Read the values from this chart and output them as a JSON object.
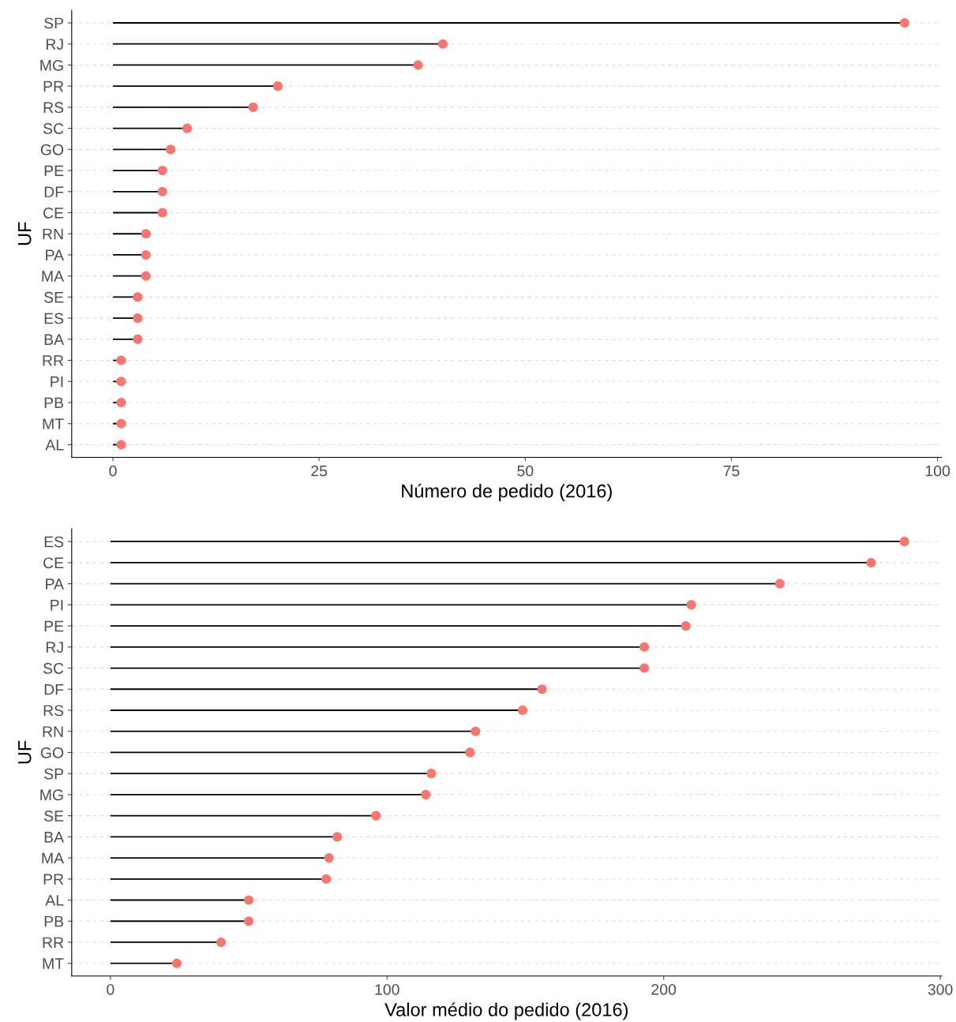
{
  "chart_data": [
    {
      "type": "lollipop",
      "orientation": "horizontal",
      "xlabel": "Número de pedido (2016)",
      "ylabel": "UF",
      "categories": [
        "SP",
        "RJ",
        "MG",
        "PR",
        "RS",
        "SC",
        "GO",
        "PE",
        "DF",
        "CE",
        "RN",
        "PA",
        "MA",
        "SE",
        "ES",
        "BA",
        "RR",
        "PI",
        "PB",
        "MT",
        "AL"
      ],
      "values": [
        96,
        40,
        37,
        20,
        17,
        9,
        7,
        6,
        6,
        6,
        4,
        4,
        4,
        3,
        3,
        3,
        1,
        1,
        1,
        1,
        1
      ],
      "color": "#f8766d",
      "marker": "circle",
      "grid": "y",
      "xlim": [
        -5,
        100.5
      ],
      "xticks": [
        0,
        25,
        50,
        75,
        100
      ]
    },
    {
      "type": "lollipop",
      "orientation": "horizontal",
      "xlabel": "Valor médio do pedido (2016)",
      "ylabel": "UF",
      "categories": [
        "ES",
        "CE",
        "PA",
        "PI",
        "PE",
        "RJ",
        "SC",
        "DF",
        "RS",
        "RN",
        "GO",
        "SP",
        "MG",
        "SE",
        "BA",
        "MA",
        "PR",
        "AL",
        "PB",
        "RR",
        "MT"
      ],
      "values": [
        287,
        275,
        242,
        210,
        208,
        193,
        193,
        156,
        149,
        132,
        130,
        116,
        114,
        96,
        82,
        79,
        78,
        50,
        50,
        40,
        24
      ],
      "color": "#f8766d",
      "marker": "circle",
      "grid": "y",
      "xlim": [
        -14,
        300.5
      ],
      "xticks": [
        0,
        100,
        200,
        300
      ]
    }
  ]
}
